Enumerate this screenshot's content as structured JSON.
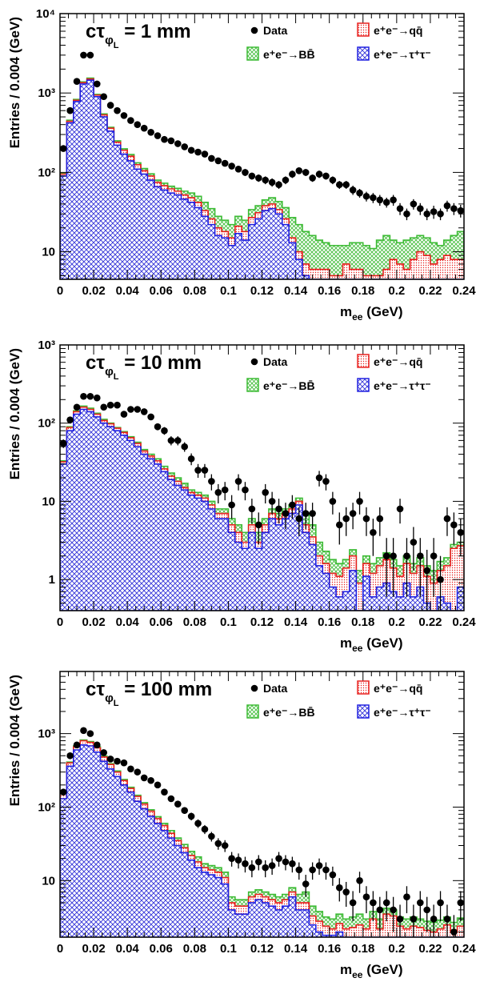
{
  "colors": {
    "data": "#000000",
    "qq": "#e8201e",
    "qq_fill": "#f4c0b8",
    "bb": "#3dbb35",
    "bb_fill": "#b8e6b0",
    "tautau": "#2020e0",
    "tautau_fill": "#9a9ae8"
  },
  "chart_data": [
    {
      "type": "histogram",
      "title_prefix": "cτ",
      "title_sub": "φ",
      "title_subsub": "L",
      "title_suffix": " = 1 mm",
      "xlabel_main": "m",
      "xlabel_sub": "ee",
      "xlabel_unit": " (GeV)",
      "ylabel": "Entries / 0.004 (GeV)",
      "xlim": [
        0,
        0.24
      ],
      "ylim": [
        4.5,
        10000
      ],
      "yscale": "log",
      "xticks": [
        0,
        0.02,
        0.04,
        0.06,
        0.08,
        0.1,
        0.12,
        0.14,
        0.16,
        0.18,
        0.2,
        0.22,
        0.24
      ],
      "xtick_labels": [
        "0",
        "0.02",
        "0.04",
        "0.06",
        "0.08",
        "0.1",
        "0.12",
        "0.14",
        "0.16",
        "0.18",
        "0.2",
        "0.22",
        "0.24"
      ],
      "yticks": [
        10,
        100,
        1000,
        10000
      ],
      "ytick_labels": [
        "10",
        "10²",
        "10³",
        "10⁴"
      ],
      "legend": {
        "data": "Data",
        "qq": "e⁺e⁻→qq̄",
        "bb": "e⁺e⁻→BB̄",
        "tautau": "e⁺e⁻→τ⁺τ⁻"
      },
      "bin_width": 0.004,
      "tautau": [
        90,
        420,
        780,
        1300,
        1450,
        900,
        500,
        330,
        220,
        170,
        140,
        110,
        95,
        80,
        66,
        60,
        55,
        52,
        46,
        42,
        36,
        28,
        22,
        16,
        15,
        12,
        17,
        14,
        22,
        26,
        33,
        35,
        30,
        22,
        13,
        8,
        5,
        4,
        4,
        3,
        3,
        3,
        3,
        3,
        3,
        3,
        3,
        3,
        3,
        3,
        3,
        3,
        3,
        3,
        3,
        3,
        3,
        3,
        3,
        3
      ],
      "qq": [
        95,
        440,
        810,
        1350,
        1500,
        940,
        530,
        360,
        240,
        190,
        160,
        125,
        105,
        90,
        75,
        68,
        62,
        58,
        52,
        48,
        42,
        33,
        26,
        20,
        18,
        15,
        21,
        18,
        27,
        31,
        38,
        40,
        34,
        26,
        15,
        10,
        7,
        6,
        6,
        6,
        5,
        5,
        7,
        6,
        6,
        5,
        5,
        5,
        6,
        8,
        7,
        6,
        8,
        10,
        9,
        7,
        8,
        9,
        8,
        8
      ],
      "bb": [
        97,
        455,
        830,
        1380,
        1540,
        960,
        545,
        370,
        250,
        198,
        168,
        132,
        112,
        96,
        80,
        73,
        67,
        63,
        58,
        55,
        50,
        42,
        35,
        28,
        25,
        22,
        28,
        25,
        34,
        38,
        45,
        48,
        43,
        36,
        27,
        22,
        18,
        16,
        14,
        13,
        12,
        12,
        12,
        13,
        13,
        12,
        11,
        14,
        16,
        14,
        13,
        14,
        15,
        16,
        15,
        13,
        12,
        14,
        16,
        18
      ],
      "data_x": [
        0.002,
        0.006,
        0.01,
        0.014,
        0.018,
        0.022,
        0.026,
        0.03,
        0.034,
        0.038,
        0.042,
        0.046,
        0.05,
        0.054,
        0.058,
        0.062,
        0.066,
        0.07,
        0.074,
        0.078,
        0.082,
        0.086,
        0.09,
        0.094,
        0.098,
        0.102,
        0.106,
        0.11,
        0.114,
        0.118,
        0.122,
        0.126,
        0.13,
        0.134,
        0.138,
        0.142,
        0.146,
        0.15,
        0.154,
        0.158,
        0.162,
        0.166,
        0.17,
        0.174,
        0.178,
        0.182,
        0.186,
        0.19,
        0.194,
        0.198,
        0.202,
        0.206,
        0.21,
        0.214,
        0.218,
        0.222,
        0.226,
        0.23,
        0.234,
        0.238
      ],
      "data_y": [
        200,
        600,
        1400,
        3000,
        3000,
        1300,
        900,
        700,
        600,
        520,
        450,
        400,
        360,
        320,
        290,
        260,
        250,
        230,
        210,
        190,
        180,
        170,
        150,
        140,
        130,
        120,
        110,
        100,
        90,
        85,
        80,
        75,
        70,
        80,
        95,
        105,
        100,
        85,
        95,
        90,
        80,
        70,
        70,
        60,
        55,
        50,
        48,
        45,
        42,
        45,
        35,
        30,
        40,
        35,
        30,
        32,
        30,
        38,
        35,
        33
      ],
      "data_err_y": [
        14,
        24,
        37,
        55,
        55,
        36,
        30,
        26,
        24,
        23,
        21,
        20,
        19,
        18,
        17,
        16,
        16,
        15,
        14,
        14,
        13,
        13,
        12,
        12,
        11,
        11,
        10,
        10,
        9,
        9,
        9,
        9,
        8,
        9,
        10,
        10,
        10,
        9,
        10,
        9,
        9,
        8,
        8,
        8,
        7,
        7,
        7,
        7,
        6,
        7,
        6,
        5,
        6,
        6,
        5,
        6,
        5,
        6,
        6,
        6
      ]
    },
    {
      "type": "histogram",
      "title_prefix": "cτ",
      "title_sub": "φ",
      "title_subsub": "L",
      "title_suffix": " = 10 mm",
      "xlabel_main": "m",
      "xlabel_sub": "ee",
      "xlabel_unit": " (GeV)",
      "ylabel": "Entries / 0.004 (GeV)",
      "xlim": [
        0,
        0.24
      ],
      "ylim": [
        0.4,
        1000
      ],
      "yscale": "log",
      "xticks": [
        0,
        0.02,
        0.04,
        0.06,
        0.08,
        0.1,
        0.12,
        0.14,
        0.16,
        0.18,
        0.2,
        0.22,
        0.24
      ],
      "xtick_labels": [
        "0",
        "0.02",
        "0.04",
        "0.06",
        "0.08",
        "0.1",
        "0.12",
        "0.14",
        "0.16",
        "0.18",
        "0.2",
        "0.22",
        "0.24"
      ],
      "yticks": [
        1,
        10,
        100,
        1000
      ],
      "ytick_labels": [
        "1",
        "10",
        "10²",
        "10³"
      ],
      "legend": {
        "data": "Data",
        "qq": "e⁺e⁻→qq̄",
        "bb": "e⁺e⁻→BB̄",
        "tautau": "e⁺e⁻→τ⁺τ⁻"
      },
      "bin_width": 0.004,
      "tautau": [
        30,
        80,
        130,
        150,
        140,
        120,
        100,
        90,
        80,
        70,
        60,
        50,
        40,
        35,
        30,
        24,
        19,
        16,
        14,
        12,
        11,
        10,
        8,
        6,
        6,
        4,
        3,
        2.5,
        4,
        2.5,
        4,
        6,
        5,
        6,
        7,
        9,
        4,
        2.8,
        1.5,
        1.2,
        0.8,
        0.6,
        0.7,
        1.3,
        0.4,
        1.1,
        0.6,
        0.8,
        0.9,
        0.7,
        0.6,
        0.9,
        0.6,
        0.8,
        0.5,
        0.4,
        0.6,
        0.5,
        0.4,
        0.8
      ],
      "qq": [
        32,
        88,
        140,
        160,
        150,
        130,
        108,
        98,
        86,
        76,
        65,
        55,
        44,
        38,
        33,
        26,
        21,
        18,
        15,
        13,
        12,
        11,
        9,
        7,
        7,
        5,
        4,
        3,
        5,
        3,
        5,
        7,
        6,
        7,
        8,
        10,
        5,
        3.5,
        2,
        1.6,
        1.2,
        1.1,
        1.4,
        2,
        0.9,
        1.6,
        1.2,
        1.5,
        1.8,
        1.4,
        1.1,
        1.6,
        1.2,
        1.5,
        1.1,
        0.9,
        1.3,
        1.5,
        2.5,
        2.7
      ],
      "bb": [
        33,
        90,
        144,
        165,
        155,
        134,
        112,
        100,
        88,
        78,
        67,
        57,
        46,
        40,
        35,
        28,
        23,
        20,
        17,
        14,
        13,
        12,
        10,
        8,
        8,
        6,
        5,
        4,
        6,
        4,
        6,
        8,
        7,
        8,
        9,
        11,
        7,
        5,
        3,
        2.3,
        1.8,
        1.6,
        1.8,
        2.4,
        1.3,
        2,
        1.6,
        1.9,
        2.2,
        1.8,
        1.5,
        2,
        1.6,
        1.9,
        1.5,
        1.3,
        1.7,
        1.9,
        2.8,
        3
      ],
      "data_x": [
        0.002,
        0.006,
        0.01,
        0.014,
        0.018,
        0.022,
        0.026,
        0.03,
        0.034,
        0.038,
        0.042,
        0.046,
        0.05,
        0.054,
        0.058,
        0.062,
        0.066,
        0.07,
        0.074,
        0.078,
        0.082,
        0.086,
        0.09,
        0.094,
        0.098,
        0.102,
        0.106,
        0.11,
        0.114,
        0.118,
        0.122,
        0.126,
        0.13,
        0.134,
        0.138,
        0.142,
        0.146,
        0.15,
        0.154,
        0.158,
        0.162,
        0.166,
        0.17,
        0.174,
        0.178,
        0.182,
        0.186,
        0.19,
        0.194,
        0.198,
        0.202,
        0.206,
        0.21,
        0.214,
        0.218,
        0.222,
        0.226,
        0.23,
        0.234,
        0.238
      ],
      "data_y": [
        55,
        110,
        160,
        220,
        220,
        210,
        160,
        170,
        170,
        130,
        150,
        150,
        140,
        120,
        90,
        80,
        60,
        60,
        50,
        35,
        25,
        25,
        18,
        13,
        14,
        9,
        18,
        14,
        8,
        5,
        13,
        10,
        8,
        7,
        9,
        6,
        7,
        7,
        20,
        18,
        10,
        5,
        6,
        7,
        10,
        6,
        4,
        6,
        2,
        2,
        8,
        2,
        3,
        2,
        1.3,
        2,
        1,
        6,
        5,
        4
      ],
      "data_err_y": [
        7,
        10,
        13,
        15,
        15,
        14,
        13,
        13,
        13,
        11,
        12,
        12,
        12,
        11,
        9,
        9,
        8,
        8,
        7,
        6,
        5,
        5,
        4.2,
        3.6,
        3.7,
        3,
        4.2,
        3.7,
        2.8,
        2.2,
        3.6,
        3.2,
        2.8,
        2.6,
        3,
        2.4,
        2.6,
        2.6,
        4.5,
        4.2,
        3.2,
        2.2,
        2.4,
        2.6,
        3.2,
        2.4,
        2,
        2.4,
        1.4,
        1.4,
        2.8,
        1.4,
        1.7,
        1.4,
        1.1,
        1.4,
        1,
        2.4,
        2.2,
        2
      ]
    },
    {
      "type": "histogram",
      "title_prefix": "cτ",
      "title_sub": "φ",
      "title_subsub": "L",
      "title_suffix": " = 100 mm",
      "xlabel_main": "m",
      "xlabel_sub": "ee",
      "xlabel_unit": " (GeV)",
      "ylabel": "Entries / 0.004 (GeV)",
      "xlim": [
        0,
        0.24
      ],
      "ylim": [
        1.7,
        7000
      ],
      "yscale": "log",
      "xticks": [
        0,
        0.02,
        0.04,
        0.06,
        0.08,
        0.1,
        0.12,
        0.14,
        0.16,
        0.18,
        0.2,
        0.22,
        0.24
      ],
      "xtick_labels": [
        "0",
        "0.02",
        "0.04",
        "0.06",
        "0.08",
        "0.1",
        "0.12",
        "0.14",
        "0.16",
        "0.18",
        "0.2",
        "0.22",
        "0.24"
      ],
      "yticks": [
        10,
        100,
        1000
      ],
      "ytick_labels": [
        "10",
        "10²",
        "10³"
      ],
      "legend": {
        "data": "Data",
        "qq": "e⁺e⁻→qq̄",
        "bb": "e⁺e⁻→BB̄",
        "tautau": "e⁺e⁻→τ⁺τ⁻"
      },
      "bin_width": 0.004,
      "tautau": [
        130,
        360,
        600,
        700,
        680,
        560,
        420,
        330,
        260,
        200,
        160,
        120,
        95,
        75,
        60,
        48,
        38,
        30,
        24,
        19,
        15,
        13,
        12,
        11,
        9,
        4,
        3.5,
        3.5,
        5,
        5.5,
        5,
        4.5,
        4,
        4.5,
        6,
        4,
        4,
        2.5,
        2,
        1.8,
        1.8,
        2,
        1.7,
        1.7,
        1.7,
        1.7,
        1.7,
        1.7,
        1.7,
        1.7,
        1.7,
        1.7,
        1.7,
        1.7,
        1.7,
        1.7,
        1.7,
        1.7,
        1.7,
        1.7
      ],
      "qq": [
        160,
        400,
        660,
        800,
        760,
        640,
        480,
        380,
        300,
        230,
        180,
        140,
        110,
        88,
        70,
        56,
        44,
        35,
        28,
        22,
        18,
        15,
        14,
        13,
        11,
        5,
        4.5,
        4.5,
        6,
        6.5,
        6,
        5.5,
        5,
        5.5,
        7,
        5,
        5,
        3.3,
        2.8,
        2.4,
        2.2,
        2.6,
        2.2,
        2.3,
        2.5,
        2.2,
        3,
        2.2,
        3.5,
        3.3,
        2.4,
        2.2,
        2.4,
        2.3,
        2.1,
        2,
        2.2,
        2.5,
        2,
        2.4
      ],
      "bb": [
        165,
        410,
        680,
        820,
        780,
        660,
        495,
        390,
        310,
        238,
        186,
        145,
        115,
        92,
        74,
        60,
        48,
        38,
        31,
        25,
        21,
        17,
        16,
        15,
        13,
        6,
        5.5,
        5.5,
        7,
        7.5,
        7,
        6.5,
        6,
        6.5,
        8,
        6.5,
        7,
        4.5,
        3.8,
        3.2,
        3,
        3.5,
        3,
        3.2,
        3.5,
        3,
        3.8,
        3,
        4.2,
        4,
        3.2,
        3,
        3.2,
        3,
        2.8,
        2.7,
        2.9,
        3.2,
        2.7,
        3.1
      ],
      "data_x": [
        0.002,
        0.006,
        0.01,
        0.014,
        0.018,
        0.022,
        0.026,
        0.03,
        0.034,
        0.038,
        0.042,
        0.046,
        0.05,
        0.054,
        0.058,
        0.062,
        0.066,
        0.07,
        0.074,
        0.078,
        0.082,
        0.086,
        0.09,
        0.094,
        0.098,
        0.102,
        0.106,
        0.11,
        0.114,
        0.118,
        0.122,
        0.126,
        0.13,
        0.134,
        0.138,
        0.142,
        0.146,
        0.15,
        0.154,
        0.158,
        0.162,
        0.166,
        0.17,
        0.174,
        0.178,
        0.182,
        0.186,
        0.19,
        0.194,
        0.198,
        0.202,
        0.206,
        0.21,
        0.214,
        0.218,
        0.222,
        0.226,
        0.23,
        0.234,
        0.238
      ],
      "data_y": [
        160,
        500,
        700,
        1100,
        1000,
        700,
        550,
        450,
        420,
        400,
        330,
        300,
        250,
        230,
        200,
        160,
        130,
        110,
        90,
        75,
        60,
        50,
        40,
        32,
        30,
        20,
        19,
        17,
        15,
        18,
        15,
        16,
        20,
        18,
        17,
        14,
        9,
        14,
        16,
        14,
        12,
        8,
        7,
        5,
        10,
        6,
        5,
        4,
        5,
        4,
        3,
        6,
        3,
        5,
        4,
        3,
        5,
        3,
        2,
        5
      ],
      "data_err_y": [
        13,
        22,
        26,
        33,
        32,
        26,
        23,
        21,
        20,
        20,
        18,
        17,
        16,
        15,
        14,
        13,
        11,
        10,
        9,
        9,
        8,
        7,
        6,
        5.7,
        5.5,
        4.5,
        4.4,
        4.1,
        3.9,
        4.2,
        3.9,
        4,
        4.5,
        4.2,
        4.1,
        3.7,
        3,
        3.7,
        4,
        3.7,
        3.5,
        2.8,
        2.6,
        2.2,
        3.2,
        2.4,
        2.2,
        2,
        2.2,
        2,
        1.7,
        2.4,
        1.7,
        2.2,
        2,
        1.7,
        2.2,
        1.7,
        1.4,
        2.2
      ]
    }
  ]
}
